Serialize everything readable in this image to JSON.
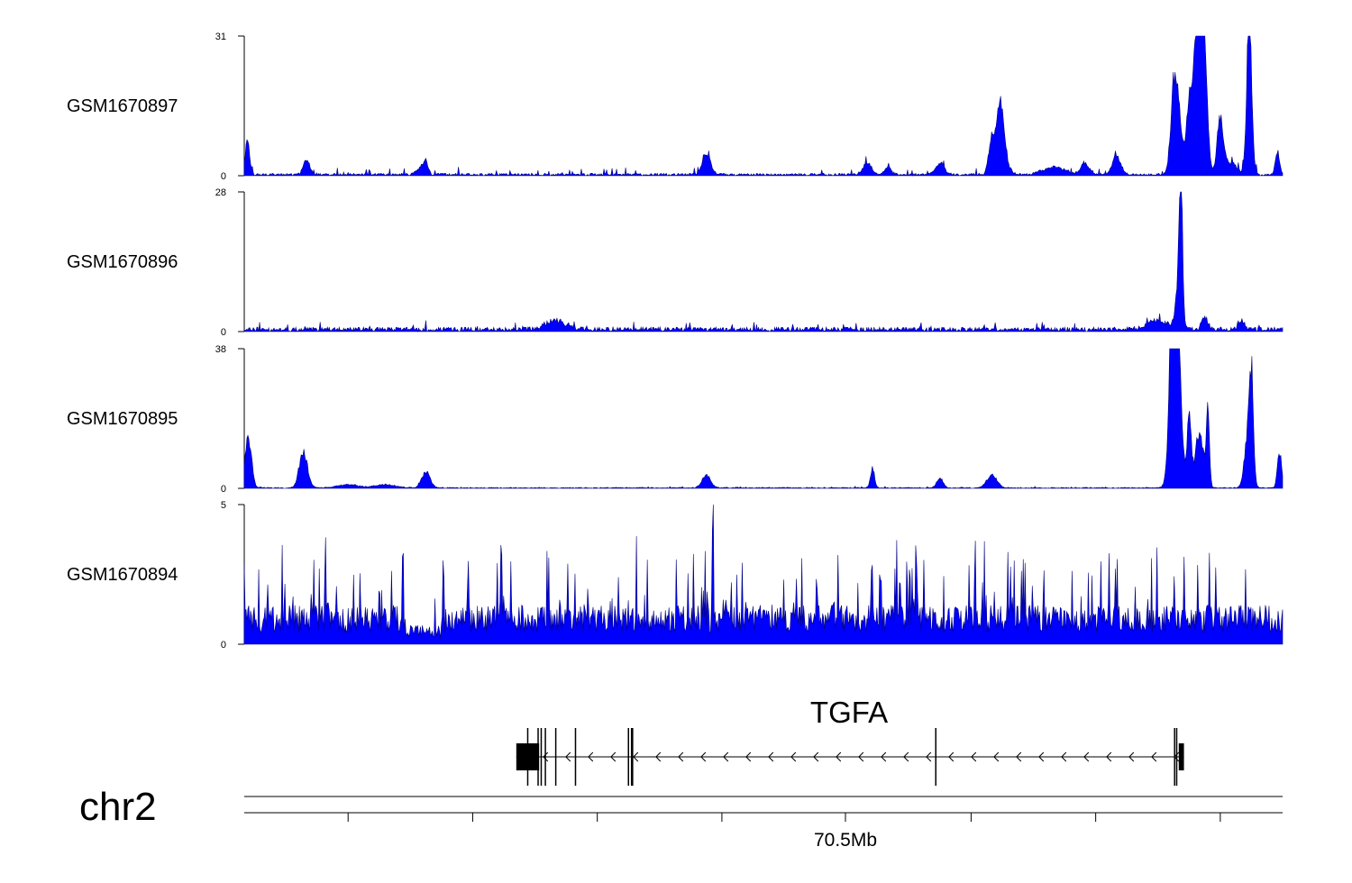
{
  "chart_data": {
    "type": "area",
    "chromosome": "chr2",
    "tracks": [
      {
        "name": "GSM1670897",
        "ymin": 0,
        "ymax": 31,
        "color": "#0000ff",
        "peaks": [
          [
            0.003,
            9,
            0.002
          ],
          [
            0.06,
            4,
            0.003
          ],
          [
            0.17,
            2,
            0.004
          ],
          [
            0.175,
            3,
            0.002
          ],
          [
            0.445,
            5,
            0.004
          ],
          [
            0.6,
            3,
            0.004
          ],
          [
            0.62,
            2,
            0.003
          ],
          [
            0.67,
            3,
            0.004
          ],
          [
            0.73,
            5,
            0.005
          ],
          [
            0.81,
            3,
            0.004
          ],
          [
            0.84,
            5,
            0.004
          ],
          [
            0.728,
            14,
            0.003
          ],
          [
            0.72,
            9,
            0.003
          ],
          [
            0.78,
            2,
            0.01
          ],
          [
            0.9,
            15,
            0.003
          ],
          [
            0.895,
            20,
            0.003
          ],
          [
            0.91,
            17,
            0.003
          ],
          [
            0.92,
            10,
            0.003
          ],
          [
            0.925,
            18,
            0.003
          ],
          [
            0.92,
            24,
            0.004
          ],
          [
            0.923,
            26,
            0.0015
          ],
          [
            0.918,
            17,
            0.004
          ],
          [
            0.94,
            14,
            0.003
          ],
          [
            0.95,
            3,
            0.006
          ],
          [
            0.966,
            16,
            0.002
          ],
          [
            0.968,
            31,
            0.0015
          ],
          [
            0.97,
            12,
            0.002
          ],
          [
            0.995,
            6,
            0.002
          ]
        ],
        "baseline": 0.6,
        "noise": 1.5
      },
      {
        "name": "GSM1670896",
        "ymin": 0,
        "ymax": 28,
        "color": "#0000ff",
        "peaks": [
          [
            0.902,
            28,
            0.0015
          ],
          [
            0.9,
            10,
            0.003
          ],
          [
            0.88,
            2,
            0.01
          ],
          [
            0.925,
            3,
            0.003
          ],
          [
            0.96,
            2,
            0.003
          ],
          [
            0.3,
            2,
            0.01
          ]
        ],
        "baseline": 1.0,
        "noise": 1.7
      },
      {
        "name": "GSM1670895",
        "ymin": 0,
        "ymax": 38,
        "color": "#0000ff",
        "peaks": [
          [
            0.004,
            16,
            0.003
          ],
          [
            0.057,
            11,
            0.004
          ],
          [
            0.175,
            5,
            0.004
          ],
          [
            0.445,
            4,
            0.004
          ],
          [
            0.605,
            6,
            0.002
          ],
          [
            0.67,
            3,
            0.003
          ],
          [
            0.72,
            4,
            0.005
          ],
          [
            0.895,
            30,
            0.004
          ],
          [
            0.893,
            37,
            0.002
          ],
          [
            0.9,
            34,
            0.003
          ],
          [
            0.897,
            38,
            0.0012
          ],
          [
            0.91,
            22,
            0.002
          ],
          [
            0.92,
            17,
            0.004
          ],
          [
            0.928,
            24,
            0.0015
          ],
          [
            0.97,
            32,
            0.002
          ],
          [
            0.966,
            14,
            0.003
          ],
          [
            0.997,
            11,
            0.002
          ],
          [
            0.1,
            1,
            0.01
          ],
          [
            0.135,
            1,
            0.01
          ]
        ],
        "baseline": 0.3,
        "noise": 0.4
      },
      {
        "name": "GSM1670894",
        "ymin": 0,
        "ymax": 5,
        "color": "#0000ff",
        "peaks": [],
        "baseline": 1.0,
        "noise": 2.0
      }
    ],
    "gene": {
      "name": "TGFA",
      "strand": "-",
      "exons": [
        0.273,
        0.283,
        0.286,
        0.29,
        0.3,
        0.319,
        0.373,
        0.374,
        0.37,
        0.666,
        0.896,
        0.898
      ],
      "cds_start": 0.262,
      "cds_end": 0.284,
      "utr_end_start": 0.9,
      "utr_end_end": 0.905,
      "span_start": 0.262,
      "span_end": 0.905
    },
    "x_axis": {
      "label": "70.5Mb",
      "label_position": 0.579,
      "ticks": [
        0.1,
        0.22,
        0.34,
        0.46,
        0.579,
        0.7,
        0.82,
        0.94
      ]
    }
  }
}
